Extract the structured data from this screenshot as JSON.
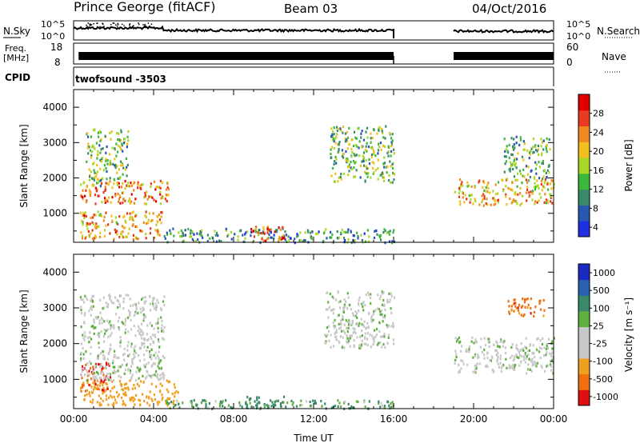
{
  "header": {
    "station": "Prince George (fitACF)",
    "beam": "Beam 03",
    "date": "04/Oct/2016"
  },
  "params": {
    "nsky_label": "N.Sky",
    "nsky_ticks": [
      "10^5",
      "10^0"
    ],
    "nsearch_label": "N.Search",
    "nsearch_ticks": [
      "10^5",
      "10^0"
    ],
    "freq_label": "Freq.",
    "freq_unit": "[MHz]",
    "freq_ticks": [
      "18",
      "8"
    ],
    "nave_label": "Nave",
    "nave_ticks": [
      "60",
      "0"
    ],
    "cpid_label": "CPID",
    "cpid_value": "twofsound  -3503"
  },
  "colors": {
    "power": [
      "#2030e0",
      "#2858b0",
      "#3a8a6a",
      "#3cb83c",
      "#a8d828",
      "#f0c020",
      "#f08a20",
      "#e83a20",
      "#e00000"
    ],
    "velocity": [
      "#e01010",
      "#f07010",
      "#f0a020",
      "#c8c8c8",
      "#c8c8c8",
      "#60b040",
      "#3a8a6a",
      "#2a60b0",
      "#1a2ac0"
    ],
    "ground_scatter": "#c8c8c8"
  },
  "chart_data": [
    {
      "type": "heatmap",
      "title": "Power",
      "ylabel": "Slant Range [km]",
      "xlabel": "",
      "ylim": [
        180,
        4500
      ],
      "yticks": [
        1000,
        2000,
        3000,
        4000
      ],
      "xlim": [
        0,
        24
      ],
      "xticks": [
        "00:00",
        "04:00",
        "08:00",
        "12:00",
        "16:00",
        "20:00",
        "00:00"
      ],
      "data_gaps_hours": [
        [
          16.0,
          19.0
        ]
      ],
      "colorbar": {
        "label": "Power [dB]",
        "ticks": [
          "28",
          "24",
          "20",
          "16",
          "12",
          "8",
          "4"
        ],
        "range": [
          0,
          30
        ]
      },
      "regions": [
        {
          "t": [
            0.3,
            4.8
          ],
          "r": [
            1300,
            1950
          ],
          "value": 22
        },
        {
          "t": [
            0.3,
            4.5
          ],
          "r": [
            300,
            1100
          ],
          "value": 20
        },
        {
          "t": [
            0.6,
            2.7
          ],
          "r": [
            1800,
            3400
          ],
          "value": 13
        },
        {
          "t": [
            4.5,
            16.0
          ],
          "r": [
            200,
            600
          ],
          "value": 9
        },
        {
          "t": [
            8.8,
            10.5
          ],
          "r": [
            200,
            650
          ],
          "value": 24
        },
        {
          "t": [
            12.8,
            16.0
          ],
          "r": [
            1900,
            3500
          ],
          "value": 12
        },
        {
          "t": [
            19.0,
            24.0
          ],
          "r": [
            1250,
            2000
          ],
          "value": 19
        },
        {
          "t": [
            21.5,
            23.8
          ],
          "r": [
            2000,
            3200
          ],
          "value": 12
        }
      ]
    },
    {
      "type": "heatmap",
      "title": "Velocity",
      "ylabel": "Slant Range [km]",
      "xlabel": "Time UT",
      "ylim": [
        180,
        4500
      ],
      "yticks": [
        1000,
        2000,
        3000,
        4000
      ],
      "xlim": [
        0,
        24
      ],
      "xticks": [
        "00:00",
        "04:00",
        "08:00",
        "12:00",
        "16:00",
        "20:00",
        "00:00"
      ],
      "data_gaps_hours": [
        [
          16.0,
          19.0
        ]
      ],
      "colorbar": {
        "label": "Velocity [m s⁻¹]",
        "ticks": [
          "1000",
          "500",
          "100",
          "25",
          "-25",
          "-100",
          "-500",
          "-1000"
        ],
        "range": [
          -1200,
          1200
        ]
      },
      "regions": [
        {
          "t": [
            0.3,
            5.2
          ],
          "r": [
            300,
            1000
          ],
          "value": -150
        },
        {
          "t": [
            0.3,
            1.8
          ],
          "r": [
            700,
            1500
          ],
          "value": -700
        },
        {
          "t": [
            0.3,
            4.5
          ],
          "r": [
            1000,
            3400
          ],
          "value": 0
        },
        {
          "t": [
            4.5,
            16.0
          ],
          "r": [
            200,
            450
          ],
          "value": 60
        },
        {
          "t": [
            8.5,
            10.5
          ],
          "r": [
            200,
            550
          ],
          "value": 120
        },
        {
          "t": [
            12.5,
            16.0
          ],
          "r": [
            1900,
            3500
          ],
          "value": 0
        },
        {
          "t": [
            19.0,
            24.0
          ],
          "r": [
            1200,
            2200
          ],
          "value": 0
        },
        {
          "t": [
            21.5,
            23.5
          ],
          "r": [
            2800,
            3300
          ],
          "value": -500
        }
      ]
    }
  ]
}
